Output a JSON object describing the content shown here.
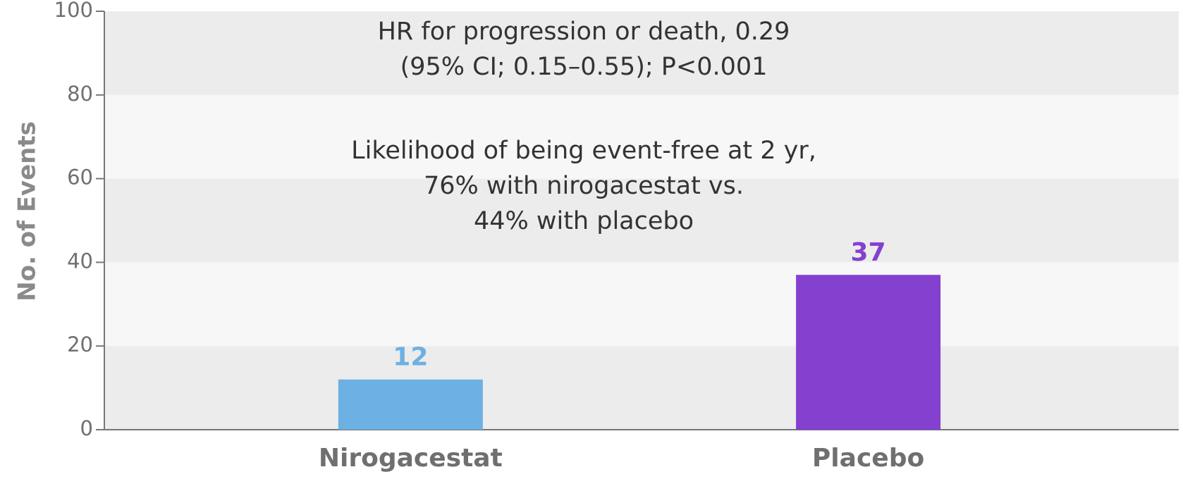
{
  "chart_data": {
    "type": "bar",
    "ylabel": "No. of Events",
    "categories": [
      "Nirogacestat",
      "Placebo"
    ],
    "values": [
      12,
      37
    ],
    "colors": [
      "#6db0e3",
      "#8440cf"
    ],
    "ylim": [
      0,
      100
    ],
    "yticks": [
      0,
      20,
      40,
      60,
      80,
      100
    ],
    "annotations": [
      {
        "lines": [
          "HR for progression or death, 0.29",
          "(95% CI; 0.15–0.55); P<0.001"
        ]
      },
      {
        "lines": [
          "Likelihood of being event-free at 2 yr,",
          "76% with nirogacestat vs.",
          "44% with placebo"
        ]
      }
    ]
  }
}
